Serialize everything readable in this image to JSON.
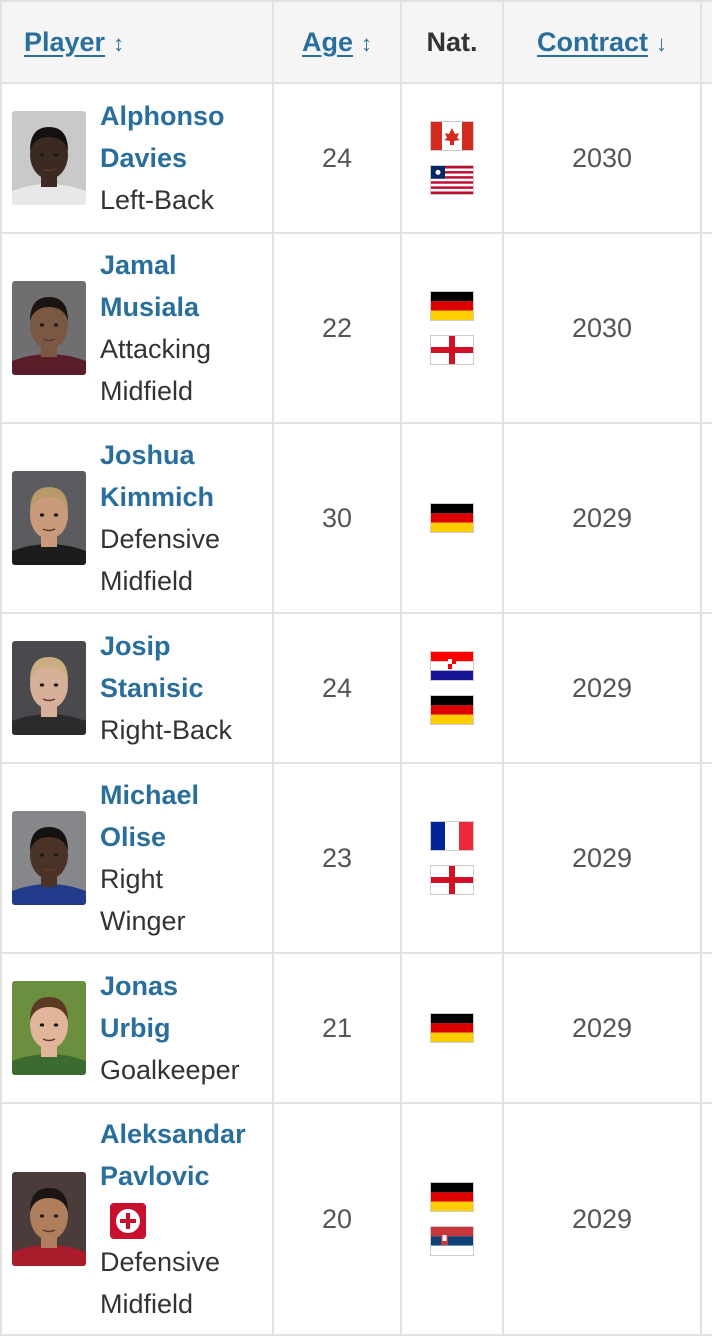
{
  "table": {
    "headers": {
      "player": "Player",
      "age": "Age",
      "nat": "Nat.",
      "contract": "Contract"
    },
    "rows": [
      {
        "name_lines": [
          "Alphonso",
          "Davies"
        ],
        "position_lines": [
          "Left-Back"
        ],
        "age": "24",
        "flags": [
          "canada-flag",
          "liberia-flag"
        ],
        "contract": "2030",
        "injury": false
      },
      {
        "name_lines": [
          "Jamal",
          "Musiala"
        ],
        "position_lines": [
          "Attacking",
          "Midfield"
        ],
        "age": "22",
        "flags": [
          "germany-flag",
          "england-flag"
        ],
        "contract": "2030",
        "injury": false
      },
      {
        "name_lines": [
          "Joshua",
          "Kimmich"
        ],
        "position_lines": [
          "Defensive",
          "Midfield"
        ],
        "age": "30",
        "flags": [
          "germany-flag"
        ],
        "contract": "2029",
        "injury": false
      },
      {
        "name_lines": [
          "Josip",
          "Stanisic"
        ],
        "position_lines": [
          "Right-Back"
        ],
        "age": "24",
        "flags": [
          "croatia-flag",
          "germany-flag"
        ],
        "contract": "2029",
        "injury": false
      },
      {
        "name_lines": [
          "Michael",
          "Olise"
        ],
        "position_lines": [
          "Right",
          "Winger"
        ],
        "age": "23",
        "flags": [
          "france-flag",
          "england-flag"
        ],
        "contract": "2029",
        "injury": false
      },
      {
        "name_lines": [
          "Jonas",
          "Urbig"
        ],
        "position_lines": [
          "Goalkeeper"
        ],
        "age": "21",
        "flags": [
          "germany-flag"
        ],
        "contract": "2029",
        "injury": false
      },
      {
        "name_lines": [
          "Aleksandar",
          "Pavlovic"
        ],
        "position_lines": [
          "Defensive",
          "Midfield"
        ],
        "age": "20",
        "flags": [
          "germany-flag",
          "serbia-flag"
        ],
        "contract": "2029",
        "injury": true
      }
    ]
  },
  "colors": {
    "link": "#2a6f9b",
    "header_bg": "#f5f5f5",
    "border": "#e2e2e2",
    "injury_badge": "#c8102e"
  },
  "icons": {
    "age_sort": "sort-both-icon",
    "player_sort": "sort-both-icon",
    "contract_sort": "sort-desc-icon",
    "injury": "medical-cross-icon"
  }
}
